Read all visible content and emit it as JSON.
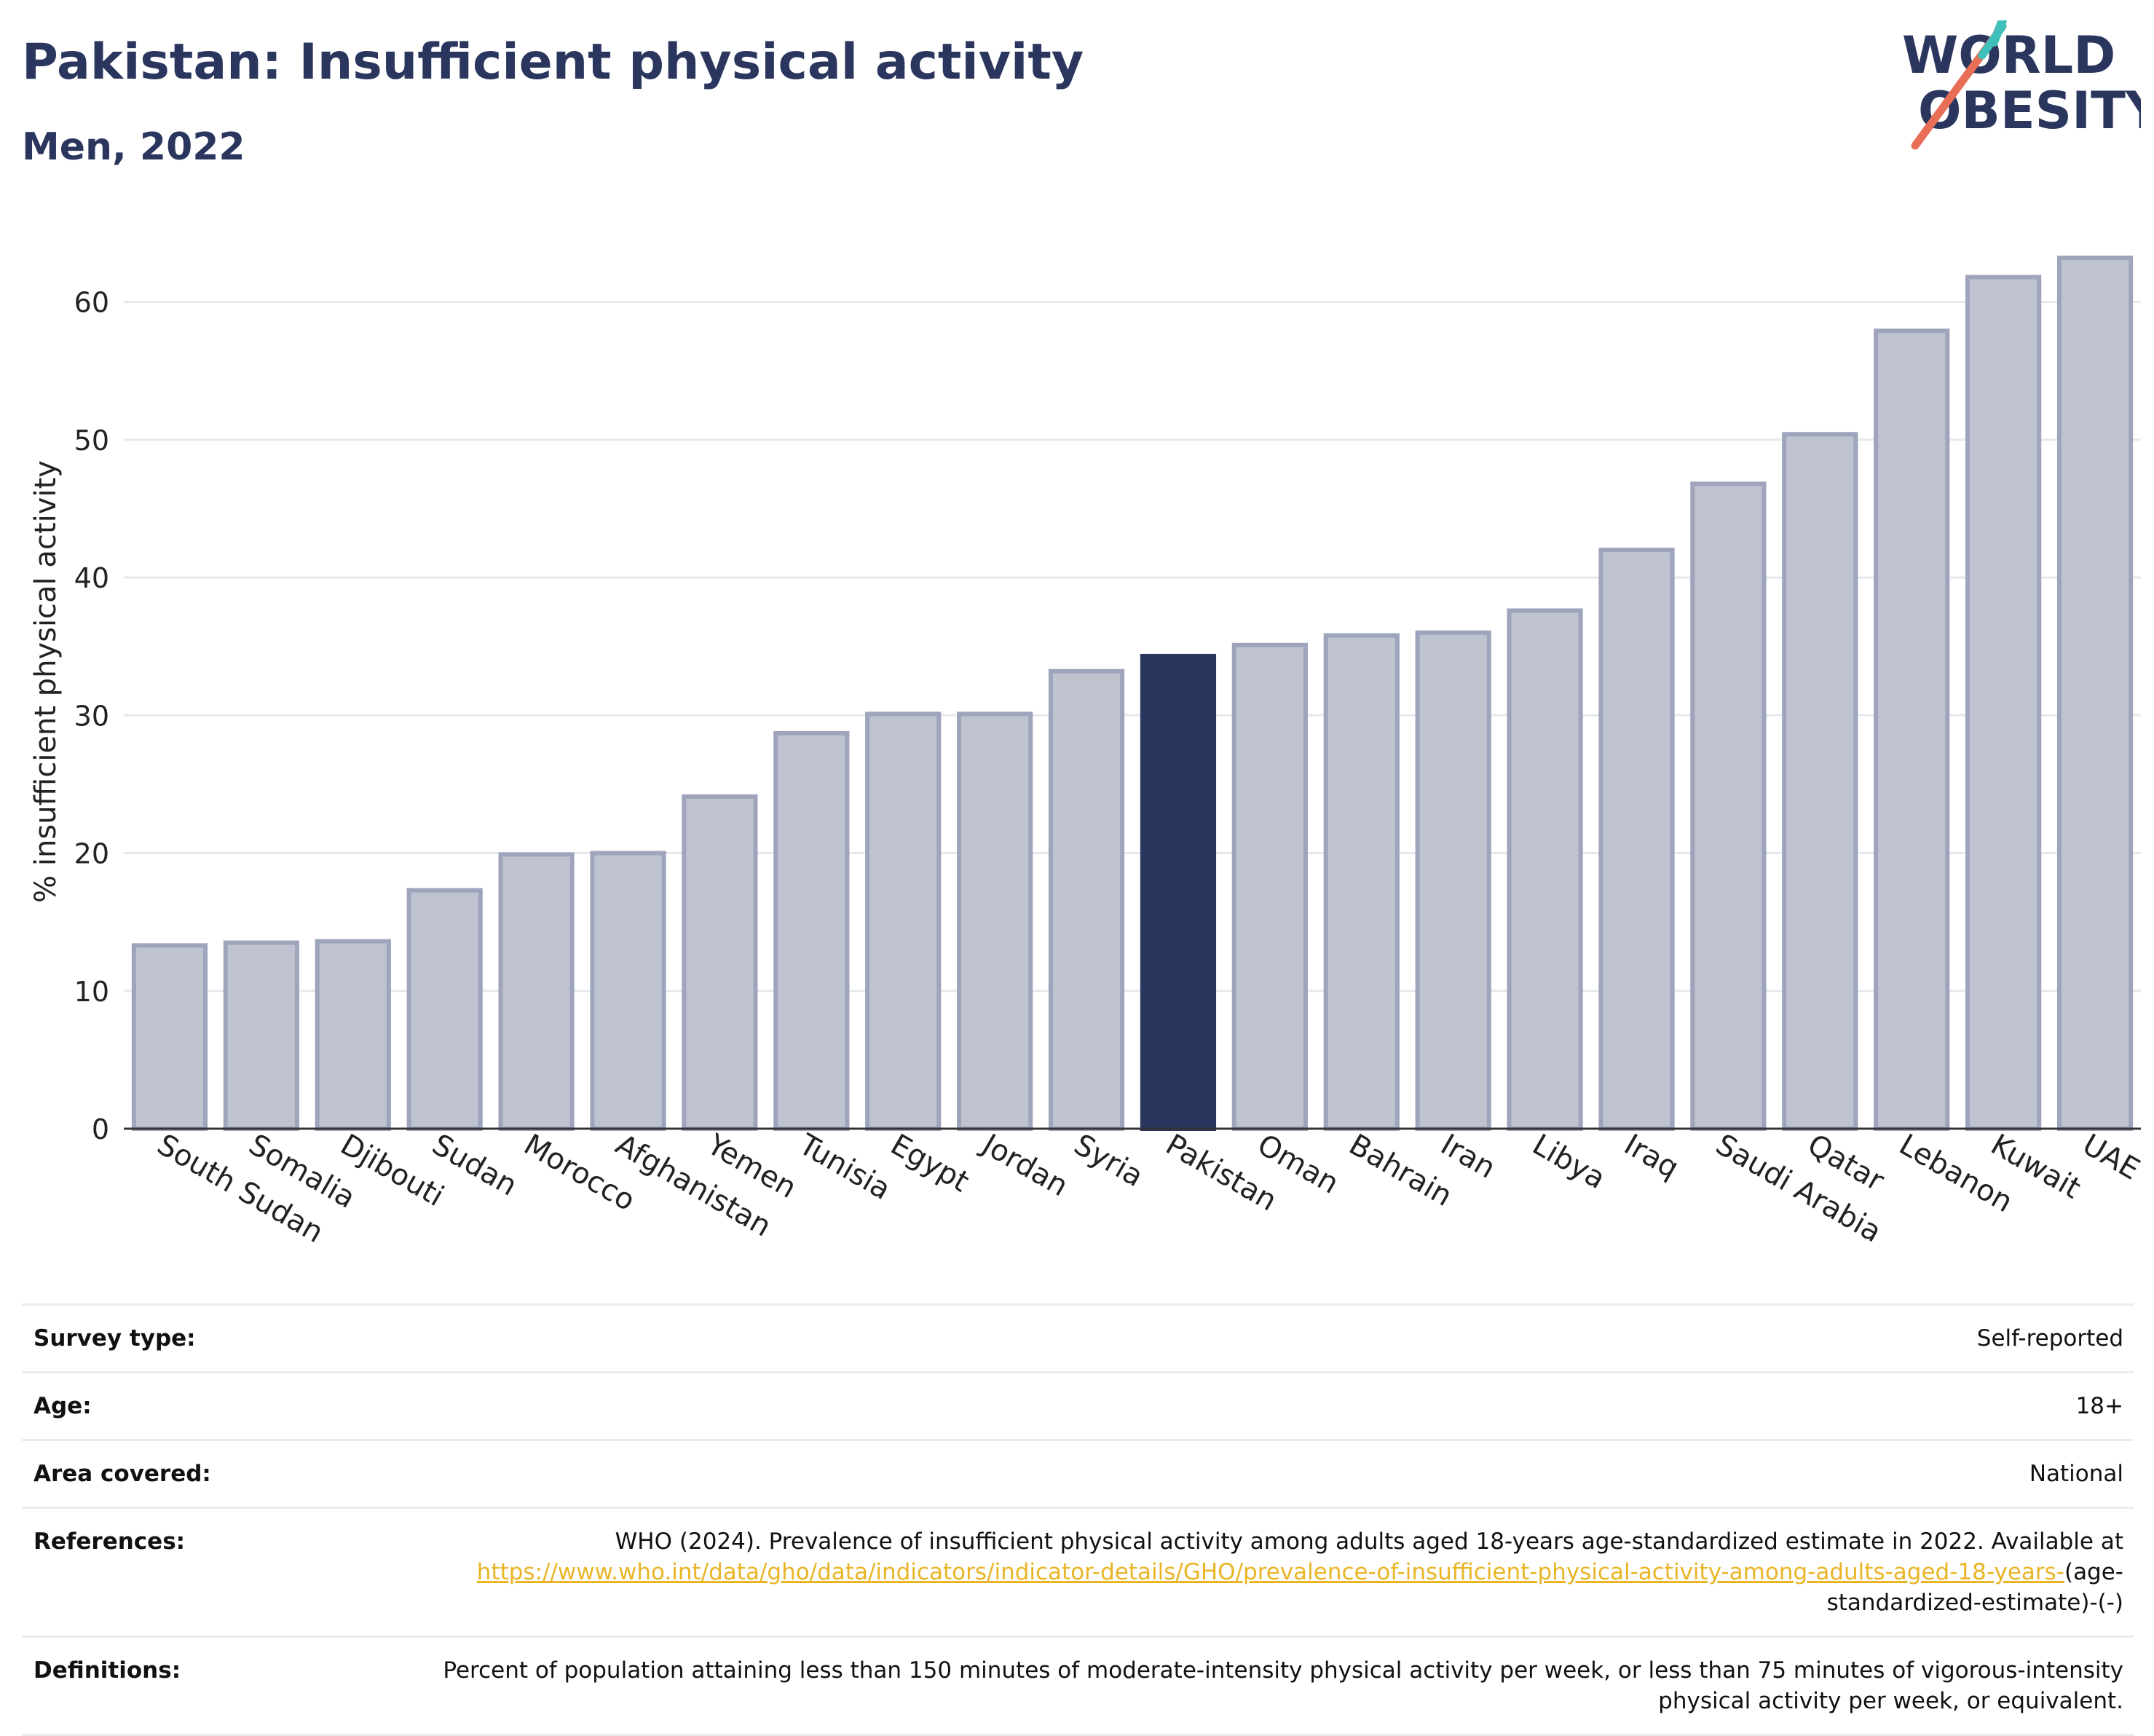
{
  "title": "Pakistan: Insufficient physical activity",
  "subtitle": "Men, 2022",
  "logo": {
    "line1": "WORLD",
    "line2": "OBESITY"
  },
  "colors": {
    "highlight": "#2b365f",
    "bar": "#bfc3d0",
    "bar_edge": "#9ea4bc",
    "title": "#2b365f",
    "link": "#e9b526"
  },
  "chart_data": {
    "type": "bar",
    "title": "Pakistan: Insufficient physical activity",
    "subtitle": "Men, 2022",
    "xlabel": "",
    "ylabel": "% insufficient physical activity",
    "ylim": [
      0,
      65
    ],
    "yticks": [
      0,
      10,
      20,
      30,
      40,
      50,
      60
    ],
    "grid": true,
    "highlight": "Pakistan",
    "categories": [
      "South Sudan",
      "Somalia",
      "Djibouti",
      "Sudan",
      "Morocco",
      "Afghanistan",
      "Yemen",
      "Tunisia",
      "Egypt",
      "Jordan",
      "Syria",
      "Pakistan",
      "Oman",
      "Bahrain",
      "Iran",
      "Libya",
      "Iraq",
      "Saudi Arabia",
      "Qatar",
      "Lebanon",
      "Kuwait",
      "UAE"
    ],
    "values": [
      13.3,
      13.5,
      13.6,
      17.3,
      19.9,
      20.0,
      24.1,
      28.7,
      30.1,
      30.1,
      33.2,
      34.3,
      35.1,
      35.8,
      36.0,
      37.6,
      42.0,
      46.8,
      50.4,
      57.9,
      61.8,
      63.2
    ]
  },
  "meta": [
    {
      "key": "Survey type:",
      "value": "Self-reported"
    },
    {
      "key": "Age:",
      "value": "18+"
    },
    {
      "key": "Area covered:",
      "value": "National"
    },
    {
      "key": "References:",
      "value": "WHO (2024). Prevalence of insufficient physical activity among adults aged 18-years age-standardized estimate in 2022. Available at",
      "link": "https://www.who.int/data/gho/data/indicators/indicator-details/GHO/prevalence-of-insufficient-physical-activity-among-adults-aged-18-years-",
      "suffix": "(age-standardized-estimate)-(-)"
    },
    {
      "key": "Definitions:",
      "value": "Percent of population attaining less than 150 minutes of moderate-intensity physical activity per week, or less than 75 minutes of vigorous-intensity physical activity per week, or equivalent."
    }
  ]
}
